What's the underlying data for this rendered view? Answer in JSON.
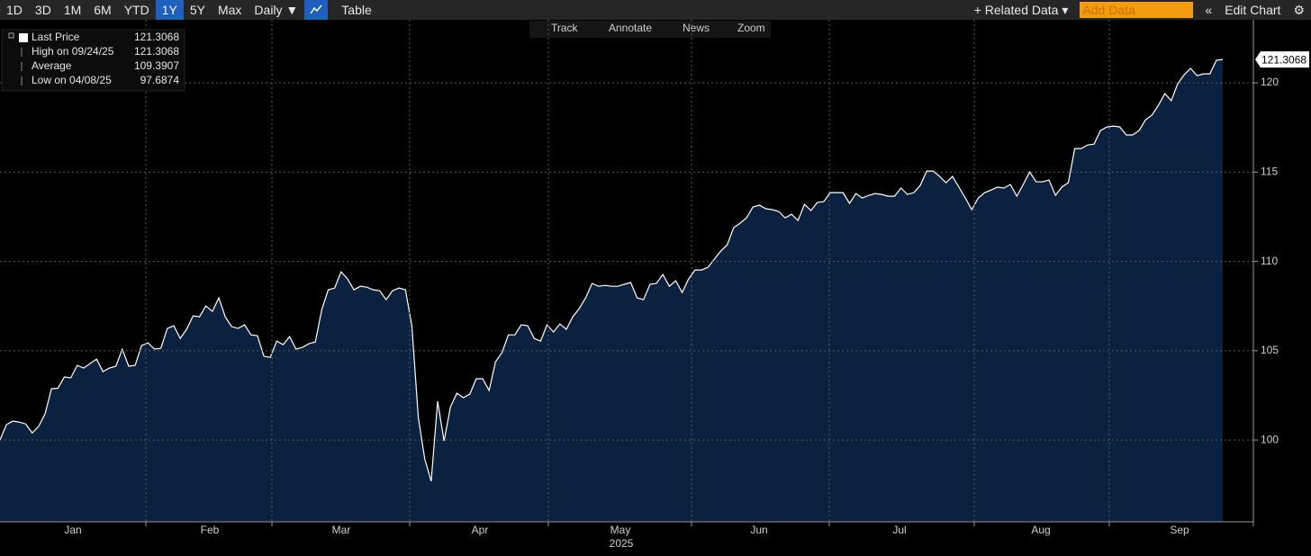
{
  "toolbar": {
    "ranges": [
      "1D",
      "3D",
      "1M",
      "6M",
      "YTD",
      "1Y",
      "5Y",
      "Max"
    ],
    "frequency": "Daily ▼",
    "table": "Table",
    "related": "+ Related Data ▾",
    "add_data": "Add Data",
    "collapse": "«",
    "edit": "Edit Chart",
    "settings": "⚙"
  },
  "tools": [
    "Track",
    "Annotate",
    "News",
    "Zoom"
  ],
  "legend": [
    {
      "label": "Last Price",
      "value": 121.3068
    },
    {
      "label": "High on 09/24/25",
      "value": 121.3068
    },
    {
      "label": "Average",
      "value": 109.3907
    },
    {
      "label": "Low on 04/08/25",
      "value": 97.6874
    }
  ],
  "chart_data": {
    "type": "area",
    "color": "#ffffff",
    "fill": "#0b2140",
    "months": [
      "Jan",
      "Feb",
      "Mar",
      "Apr",
      "May",
      "Jun",
      "Jul",
      "Aug",
      "Sep"
    ],
    "year": "2025",
    "values": [
      100.0,
      100.86,
      101.06,
      101.0,
      100.9,
      100.4,
      100.76,
      101.46,
      102.87,
      102.9,
      103.53,
      103.48,
      104.18,
      104.03,
      104.28,
      104.53,
      103.83,
      104.03,
      104.13,
      105.09,
      104.13,
      104.18,
      105.29,
      105.44,
      105.09,
      105.14,
      106.25,
      106.4,
      105.69,
      106.2,
      106.95,
      106.9,
      107.51,
      107.2,
      107.96,
      106.9,
      106.35,
      106.25,
      106.45,
      105.89,
      105.84,
      104.69,
      104.63,
      105.54,
      105.34,
      105.79,
      105.09,
      105.19,
      105.39,
      105.49,
      107.3,
      108.41,
      108.51,
      109.42,
      109.02,
      108.41,
      108.61,
      108.56,
      108.41,
      108.36,
      107.86,
      108.36,
      108.51,
      108.41,
      106.4,
      101.26,
      98.94,
      97.6874,
      102.17,
      99.95,
      101.86,
      102.62,
      102.37,
      102.57,
      103.43,
      103.43,
      102.77,
      104.38,
      104.89,
      105.89,
      105.89,
      106.45,
      106.4,
      105.69,
      105.54,
      106.45,
      106.05,
      106.5,
      106.2,
      106.9,
      107.36,
      107.96,
      108.77,
      108.61,
      108.66,
      108.61,
      108.61,
      108.72,
      108.82,
      107.96,
      107.86,
      108.72,
      108.77,
      109.27,
      108.61,
      108.92,
      108.26,
      109.02,
      109.52,
      109.52,
      109.67,
      110.13,
      110.58,
      110.93,
      111.89,
      112.14,
      112.44,
      113.05,
      113.15,
      112.95,
      112.9,
      112.8,
      112.44,
      112.64,
      112.29,
      113.2,
      112.85,
      113.3,
      113.35,
      113.85,
      113.85,
      113.85,
      113.25,
      113.8,
      113.55,
      113.7,
      113.8,
      113.75,
      113.65,
      113.65,
      114.11,
      113.75,
      113.85,
      114.26,
      115.06,
      115.06,
      114.76,
      114.41,
      114.76,
      114.16,
      113.55,
      112.9,
      113.55,
      113.85,
      114.0,
      114.16,
      114.11,
      114.31,
      113.65,
      114.31,
      115.01,
      114.46,
      114.46,
      114.56,
      113.7,
      114.16,
      114.41,
      116.32,
      116.32,
      116.52,
      116.57,
      117.33,
      117.53,
      117.58,
      117.53,
      117.08,
      117.08,
      117.33,
      117.93,
      118.19,
      118.74,
      119.4,
      119.0,
      119.95,
      120.45,
      120.81,
      120.4,
      120.5,
      120.5,
      121.26,
      121.3068
    ],
    "ylim": [
      95.42,
      123.53
    ],
    "yticks": [
      100,
      105,
      110,
      115,
      120
    ],
    "grid": true
  }
}
